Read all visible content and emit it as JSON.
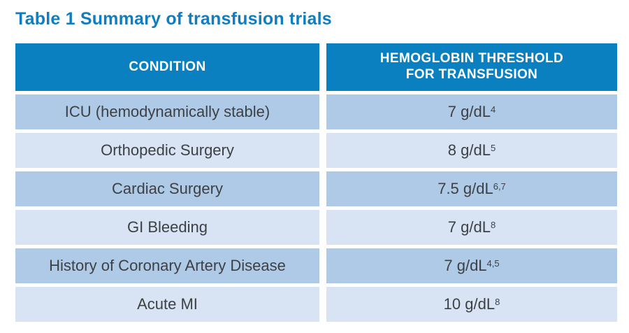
{
  "title": "Table 1 Summary of transfusion trials",
  "colors": {
    "title_text": "#0f7dbf",
    "header_bg": "#0a80c1",
    "header_text": "#ffffff",
    "row_dark": "#aecae6",
    "row_light": "#d8e4f3",
    "cell_text": "#3d4145"
  },
  "table": {
    "header": {
      "condition": "CONDITION",
      "threshold_line1": "HEMOGLOBIN THRESHOLD",
      "threshold_line2": "FOR TRANSFUSION"
    },
    "rows": [
      {
        "condition": "ICU (hemodynamically stable)",
        "threshold": "7 g/dL",
        "refs": "4"
      },
      {
        "condition": "Orthopedic Surgery",
        "threshold": "8 g/dL",
        "refs": "5"
      },
      {
        "condition": "Cardiac Surgery",
        "threshold": "7.5 g/dL",
        "refs": "6,7"
      },
      {
        "condition": "GI Bleeding",
        "threshold": "7 g/dL",
        "refs": "8"
      },
      {
        "condition": "History of Coronary Artery Disease",
        "threshold": "7 g/dL",
        "refs": "4,5"
      },
      {
        "condition": "Acute MI",
        "threshold": "10 g/dL",
        "refs": "8"
      }
    ]
  },
  "chart_data": {
    "type": "table",
    "title": "Table 1 Summary of transfusion trials",
    "columns": [
      "CONDITION",
      "HEMOGLOBIN THRESHOLD FOR TRANSFUSION"
    ],
    "rows": [
      [
        "ICU (hemodynamically stable)",
        "7 g/dL [ref 4]"
      ],
      [
        "Orthopedic Surgery",
        "8 g/dL [ref 5]"
      ],
      [
        "Cardiac Surgery",
        "7.5 g/dL [refs 6,7]"
      ],
      [
        "GI Bleeding",
        "7 g/dL [ref 8]"
      ],
      [
        "History of Coronary Artery Disease",
        "7 g/dL [refs 4,5]"
      ],
      [
        "Acute MI",
        "10 g/dL [ref 8]"
      ]
    ]
  }
}
